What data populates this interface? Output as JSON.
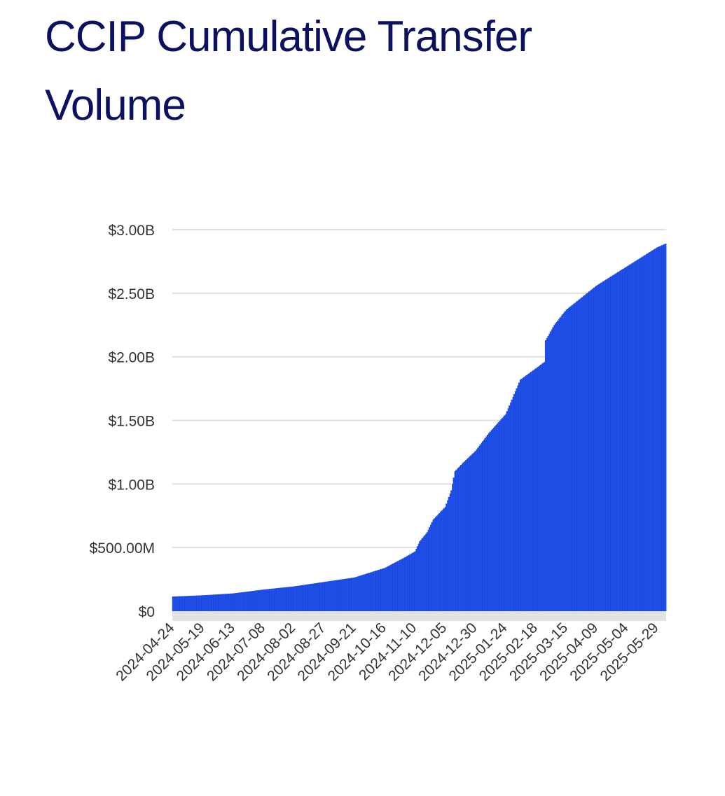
{
  "chart_data": {
    "type": "bar",
    "title": "CCIP Cumulative Transfer Volume",
    "xlabel": "",
    "ylabel": "",
    "ylim": [
      0,
      3000000000
    ],
    "y_tick_values": [
      0,
      500000000,
      1000000000,
      1500000000,
      2000000000,
      2500000000,
      3000000000
    ],
    "y_tick_labels": [
      "$0",
      "$500.00M",
      "$1.00B",
      "$1.50B",
      "$2.00B",
      "$2.50B",
      "$3.00B"
    ],
    "x_start": "2024-04-24",
    "x_end": "2025-06-05",
    "x_tick_labels": [
      "2024-04-24",
      "2024-05-19",
      "2024-06-13",
      "2024-07-08",
      "2024-08-02",
      "2024-08-27",
      "2024-09-21",
      "2024-10-16",
      "2024-11-10",
      "2024-12-05",
      "2024-12-30",
      "2025-01-24",
      "2025-02-18",
      "2025-03-15",
      "2025-04-09",
      "2025-05-04",
      "2025-05-29"
    ],
    "grid": true,
    "bar_color": "#1f4fe8",
    "series": [
      {
        "values_by_date": [
          [
            "2024-04-24",
            115000000
          ],
          [
            "2024-05-19",
            125000000
          ],
          [
            "2024-06-13",
            140000000
          ],
          [
            "2024-07-08",
            170000000
          ],
          [
            "2024-08-02",
            195000000
          ],
          [
            "2024-08-27",
            230000000
          ],
          [
            "2024-09-21",
            265000000
          ],
          [
            "2024-10-16",
            340000000
          ],
          [
            "2024-11-01",
            420000000
          ],
          [
            "2024-11-10",
            470000000
          ],
          [
            "2024-11-14",
            550000000
          ],
          [
            "2024-11-20",
            620000000
          ],
          [
            "2024-11-25",
            720000000
          ],
          [
            "2024-12-05",
            820000000
          ],
          [
            "2024-12-10",
            950000000
          ],
          [
            "2024-12-13",
            1100000000
          ],
          [
            "2024-12-20",
            1170000000
          ],
          [
            "2024-12-30",
            1260000000
          ],
          [
            "2025-01-10",
            1400000000
          ],
          [
            "2025-01-24",
            1550000000
          ],
          [
            "2025-02-05",
            1820000000
          ],
          [
            "2025-02-18",
            1910000000
          ],
          [
            "2025-02-25",
            1960000000
          ],
          [
            "2025-02-26",
            2130000000
          ],
          [
            "2025-03-05",
            2250000000
          ],
          [
            "2025-03-15",
            2370000000
          ],
          [
            "2025-04-09",
            2560000000
          ],
          [
            "2025-05-04",
            2710000000
          ],
          [
            "2025-05-29",
            2860000000
          ],
          [
            "2025-06-05",
            2890000000
          ]
        ]
      }
    ]
  }
}
